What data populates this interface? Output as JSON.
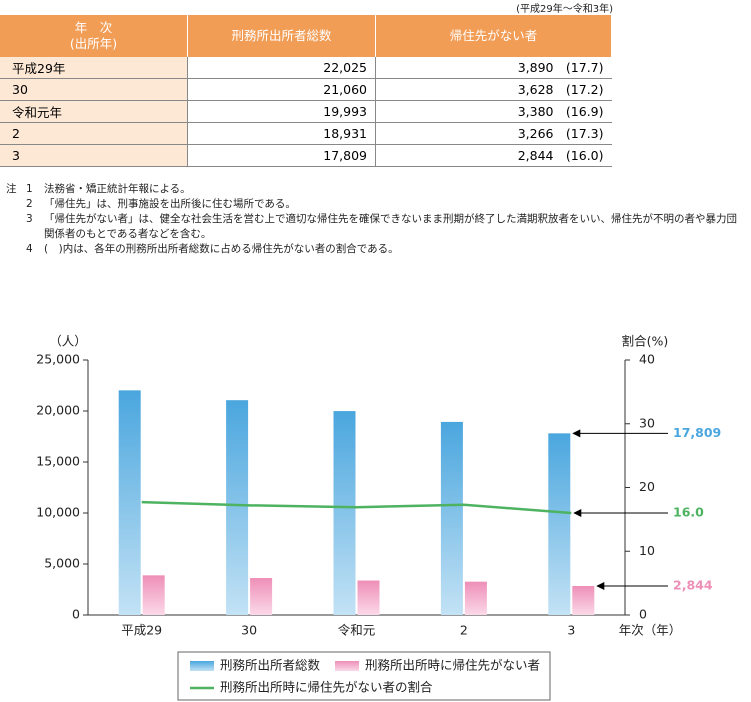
{
  "table": {
    "period": "(平成29年～令和3年)",
    "header_first": [
      "年　次",
      "(出所年)"
    ],
    "headers": [
      "刑務所出所者総数",
      "帰住先がない者"
    ],
    "rows": [
      [
        "平成29年",
        "22,025",
        "3,890",
        "(17.7)"
      ],
      [
        "30",
        "21,060",
        "3,628",
        "(17.2)"
      ],
      [
        "令和元年",
        "19,993",
        "3,380",
        "(16.9)"
      ],
      [
        "2",
        "18,931",
        "3,266",
        "(17.3)"
      ],
      [
        "3",
        "17,809",
        "2,844",
        "(16.0)"
      ]
    ]
  },
  "notes": {
    "label": "注",
    "items": [
      {
        "number": "1",
        "text": "法務省・矯正統計年報による。"
      },
      {
        "number": "2",
        "text": "「帰住先」は、刑事施設を出所後に住む場所である。"
      },
      {
        "number": "3",
        "text": "「帰住先がない者」は、健全な社会生活を営む上で適切な帰住先を確保できないまま刑期が終了した満期釈放者をいい、帰住先が不明の者や暴力団関係者のもとである者などを含む。"
      },
      {
        "number": "4",
        "text": "(　)内は、各年の刑務所出所者総数に占める帰住先がない者の割合である。"
      }
    ]
  },
  "chart_data": {
    "type": "bar",
    "y_label": "（人）",
    "y2_label": "割合(%)",
    "x_label": "年次（年）",
    "categories": [
      "平成29",
      "30",
      "令和元",
      "2",
      "3"
    ],
    "series": [
      {
        "name": "刑務所出所者総数",
        "color": "#4aa6de",
        "values": [
          22025,
          21060,
          19993,
          18931,
          17809
        ],
        "value_labels": [
          null,
          null,
          null,
          null,
          "17,809"
        ]
      },
      {
        "name": "刑務所出所時に帰住先がない者",
        "color": "#ee8fb8",
        "values": [
          3890,
          3628,
          3380,
          3266,
          2844
        ],
        "value_labels": [
          null,
          null,
          null,
          null,
          "2,844"
        ]
      },
      {
        "name": "刑務所出所時に帰住先がない者の割合",
        "color": "#4db361",
        "type": "line",
        "axis": "y2",
        "values": [
          17.7,
          17.2,
          16.9,
          17.3,
          16.0
        ],
        "value_labels": [
          null,
          null,
          null,
          null,
          "16.0"
        ]
      }
    ],
    "ylim": [
      0,
      25000
    ],
    "yticks": [
      0,
      {
        "value": 5000,
        "label": "5,000"
      },
      {
        "value": 10000,
        "label": "10,000"
      },
      {
        "value": 15000,
        "label": "15,000"
      },
      {
        "value": 20000,
        "label": "20,000"
      },
      {
        "value": 25000,
        "label": "25,000"
      }
    ],
    "y2lim": [
      0,
      40
    ],
    "y2ticks": [
      0,
      10,
      20,
      30,
      40
    ]
  }
}
